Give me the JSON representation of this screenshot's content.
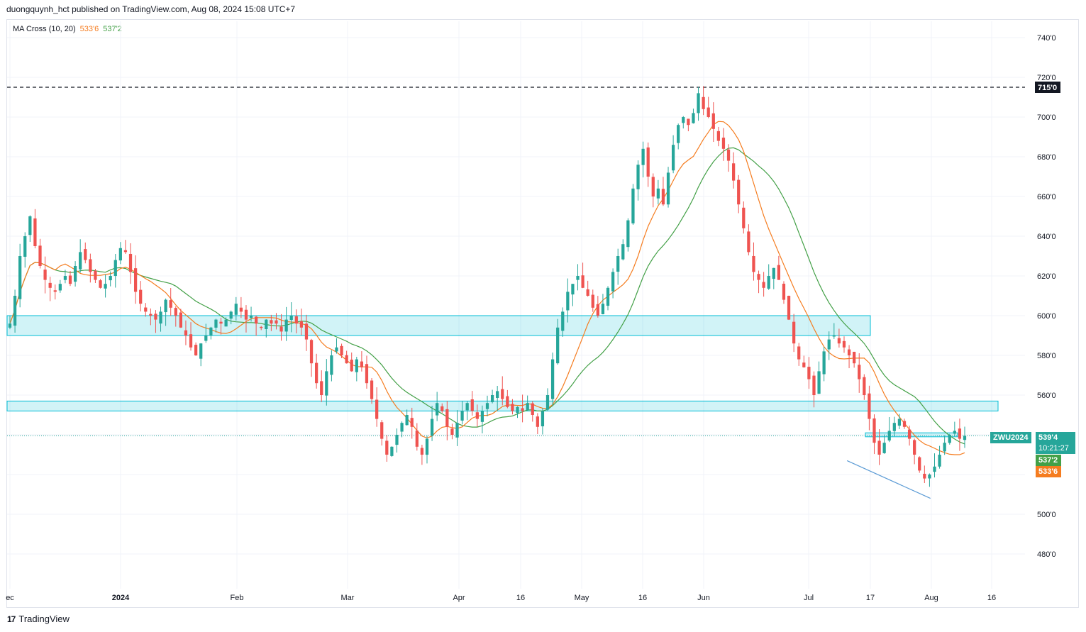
{
  "header": {
    "published": "duongquynh_hct published on TradingView.com, Aug 08, 2024 15:08 UTC+7"
  },
  "indicator": {
    "name": "MA Cross (10, 20)",
    "fast_value": "533'6",
    "slow_value": "537'2"
  },
  "colors": {
    "up": "#26a69a",
    "down": "#ef5350",
    "fast_ma": "#f57c1f",
    "slow_ma": "#43a047",
    "zone": "#00bcd4"
  },
  "chart_data": {
    "type": "candlestick",
    "symbol": "ZWU2024",
    "y_axis": {
      "min": 470,
      "max": 745,
      "ticks": [
        "740'0",
        "720'0",
        "700'0",
        "680'0",
        "660'0",
        "640'0",
        "620'0",
        "600'0",
        "580'0",
        "560'0",
        "540'0",
        "520'0",
        "500'0",
        "480'0"
      ]
    },
    "x_axis": {
      "labels": [
        {
          "text": "ec",
          "bold": false
        },
        {
          "text": "2024",
          "bold": true
        },
        {
          "text": "Feb",
          "bold": false
        },
        {
          "text": "Mar",
          "bold": false
        },
        {
          "text": "Apr",
          "bold": false
        },
        {
          "text": "16",
          "bold": false
        },
        {
          "text": "May",
          "bold": false
        },
        {
          "text": "16",
          "bold": false
        },
        {
          "text": "Jun",
          "bold": false
        },
        {
          "text": "Jul",
          "bold": false
        },
        {
          "text": "17",
          "bold": false
        },
        {
          "text": "Aug",
          "bold": false
        },
        {
          "text": "16",
          "bold": false
        }
      ]
    },
    "close_path": [
      596,
      610,
      630,
      640,
      650,
      635,
      625,
      618,
      614,
      612,
      616,
      620,
      616,
      625,
      632,
      628,
      622,
      618,
      614,
      616,
      620,
      628,
      634,
      632,
      622,
      612,
      606,
      602,
      600,
      598,
      602,
      608,
      604,
      600,
      594,
      590,
      584,
      580,
      586,
      590,
      594,
      598,
      596,
      598,
      602,
      606,
      602,
      598,
      600,
      596,
      594,
      598,
      596,
      596,
      592,
      598,
      600,
      596,
      594,
      588,
      576,
      566,
      560,
      572,
      580,
      584,
      580,
      576,
      572,
      578,
      574,
      566,
      558,
      548,
      538,
      530,
      534,
      540,
      546,
      550,
      544,
      534,
      530,
      538,
      548,
      556,
      552,
      544,
      540,
      546,
      552,
      556,
      552,
      548,
      552,
      556,
      560,
      562,
      558,
      554,
      552,
      554,
      552,
      556,
      550,
      544,
      552,
      560,
      578,
      594,
      602,
      612,
      616,
      620,
      614,
      610,
      604,
      600,
      606,
      614,
      622,
      630,
      636,
      648,
      664,
      676,
      684,
      670,
      660,
      664,
      656,
      672,
      686,
      696,
      700,
      696,
      702,
      712,
      704,
      700,
      694,
      688,
      684,
      678,
      668,
      656,
      644,
      632,
      622,
      618,
      614,
      620,
      624,
      618,
      608,
      598,
      586,
      578,
      574,
      568,
      560,
      572,
      582,
      588,
      590,
      586,
      584,
      580,
      576,
      568,
      560,
      548,
      536,
      530,
      536,
      542,
      546,
      548,
      544,
      538,
      530,
      522,
      518,
      520,
      524,
      530,
      536,
      540,
      542,
      538,
      539.5
    ],
    "reference_line": {
      "label": "715'0",
      "value": 715
    },
    "zones": [
      {
        "low": 590,
        "high": 600
      },
      {
        "low": 552,
        "high": 557
      },
      {
        "low": 539,
        "high": 541
      }
    ],
    "trendline": {
      "from_index": 168,
      "to_index": 186,
      "y1": 527,
      "y2": 508
    },
    "price_badges": {
      "symbol": "ZWU2024",
      "last": "539'4",
      "countdown": "10:21:27",
      "slow_ma": "537'2",
      "fast_ma": "533'6"
    }
  },
  "footer": {
    "brand": "TradingView"
  }
}
